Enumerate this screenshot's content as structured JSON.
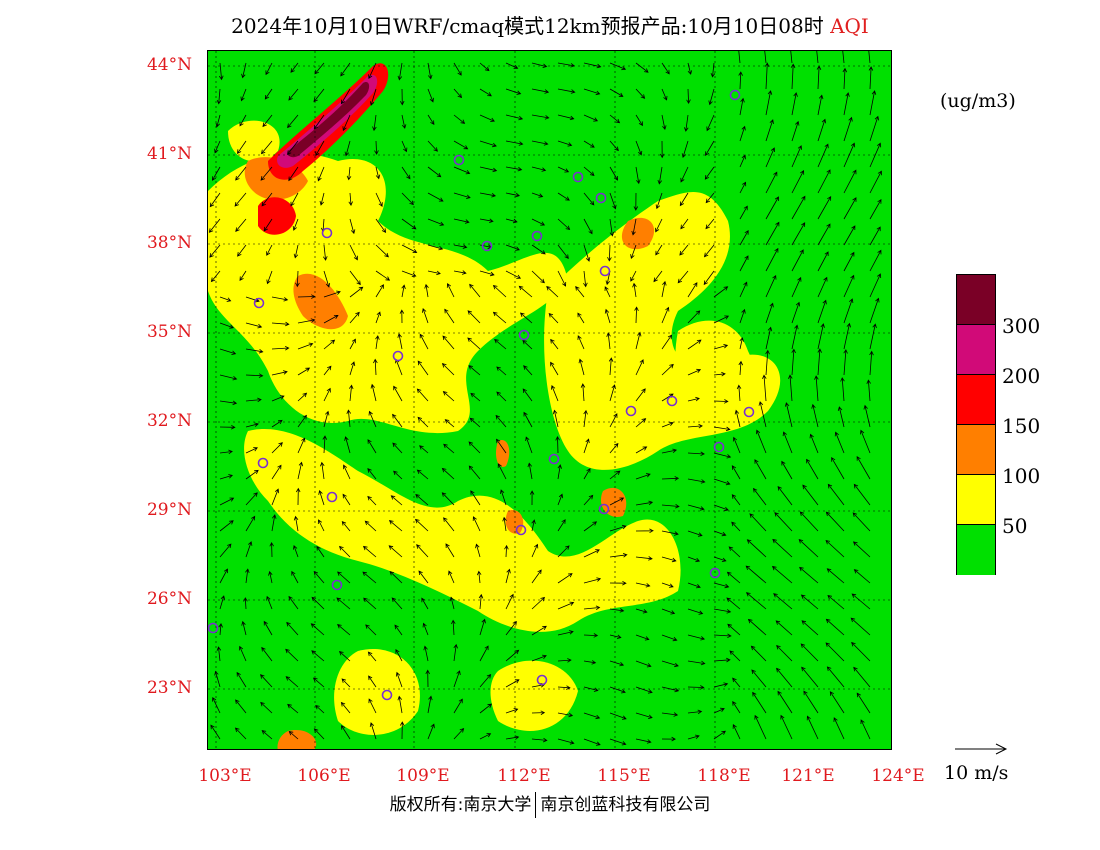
{
  "title": "2024年10月10日WRF/cmaq模式12km预报产品:10月10日08时",
  "title_tag": "AQI",
  "latitude_labels": [
    "44°N",
    "41°N",
    "38°N",
    "35°N",
    "32°N",
    "29°N",
    "26°N",
    "23°N"
  ],
  "longitude_labels": [
    "103°E",
    "106°E",
    "109°E",
    "112°E",
    "115°E",
    "118°E",
    "121°E",
    "124°E"
  ],
  "unit": "(ug/m3)",
  "legend": {
    "colors": [
      "#7a0026",
      "#d10a78",
      "#ff0000",
      "#ff7f00",
      "#ffff00",
      "#00e000"
    ],
    "labels": [
      "300",
      "200",
      "150",
      "100",
      "50"
    ]
  },
  "wind_reference": "10 m/s",
  "footer": {
    "left": "版权所有:南京大学",
    "right": "南京创蓝科技有限公司"
  },
  "colors": {
    "green": "#00e000",
    "yellow": "#ffff00",
    "orange": "#ff7f00",
    "red": "#ff0000",
    "magenta": "#d10a78",
    "darkred": "#7a0026",
    "site_marker": "#7a30d0",
    "axis_label": "#e0191e"
  }
}
